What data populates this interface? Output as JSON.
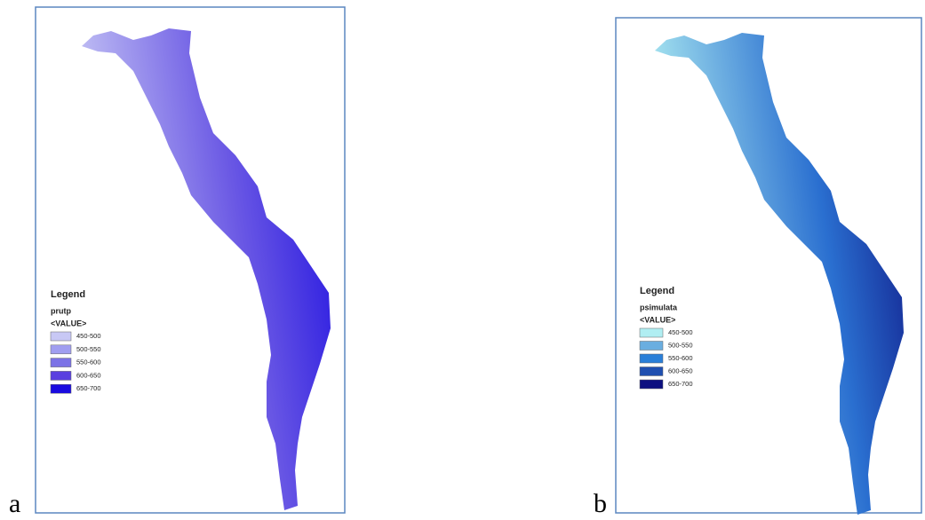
{
  "panels": [
    {
      "label": "a",
      "legend": {
        "title": "Legend",
        "layer": "prutp",
        "field": "<VALUE>",
        "items": [
          {
            "label": "450-500",
            "color": "#c8c8f5"
          },
          {
            "label": "500-550",
            "color": "#a09ef0"
          },
          {
            "label": "550-600",
            "color": "#7b72e6"
          },
          {
            "label": "600-650",
            "color": "#5a40e0"
          },
          {
            "label": "650-700",
            "color": "#1a0be0"
          }
        ]
      }
    },
    {
      "label": "b",
      "legend": {
        "title": "Legend",
        "layer": "psimulata",
        "field": "<VALUE>",
        "items": [
          {
            "label": "450-500",
            "color": "#b0eef2"
          },
          {
            "label": "500-550",
            "color": "#6aaee0"
          },
          {
            "label": "550-600",
            "color": "#2a7fd8"
          },
          {
            "label": "600-650",
            "color": "#1f4fb0"
          },
          {
            "label": "650-700",
            "color": "#0d1080"
          }
        ]
      }
    }
  ]
}
